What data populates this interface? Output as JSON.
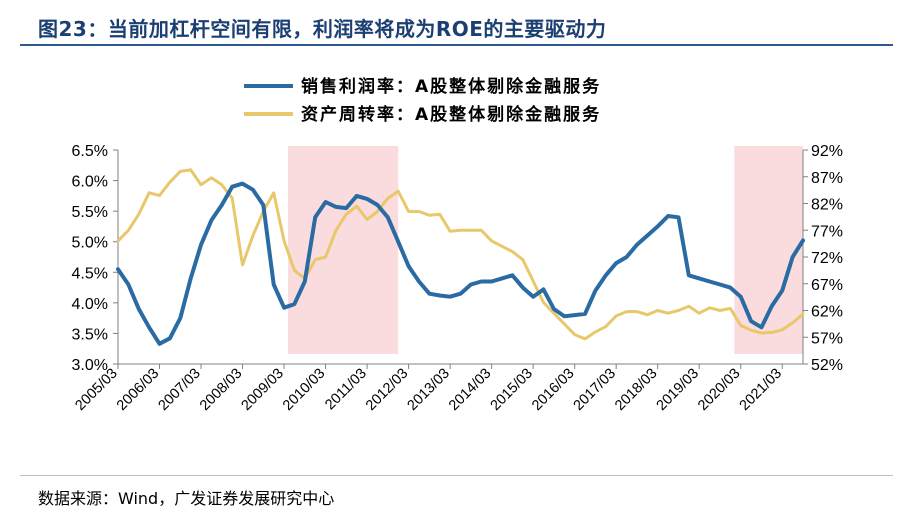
{
  "figure": {
    "title": "图23：当前加杠杆空间有限，利润率将成为ROE的主要驱动力",
    "source": "数据来源：Wind，广发证券发展研究中心"
  },
  "colors": {
    "series1": "#2a6ba3",
    "series2": "#e8c86a",
    "shade": "#fadbde",
    "title": "#1b3f73"
  },
  "chart_data": {
    "type": "line",
    "title": "",
    "x_tick_labels": [
      "2005/03",
      "2006/03",
      "2007/03",
      "2008/03",
      "2009/03",
      "2010/03",
      "2011/03",
      "2012/03",
      "2013/03",
      "2014/03",
      "2015/03",
      "2016/03",
      "2017/03",
      "2018/03",
      "2019/03",
      "2020/03",
      "2021/03"
    ],
    "x_range": [
      2005.0,
      2021.5
    ],
    "left_axis": {
      "min": 3.0,
      "max": 6.5,
      "tick_labels": [
        "3.0%",
        "3.5%",
        "4.0%",
        "4.5%",
        "5.0%",
        "5.5%",
        "6.0%",
        "6.5%"
      ],
      "tick_values": [
        3.0,
        3.5,
        4.0,
        4.5,
        5.0,
        5.5,
        6.0,
        6.5
      ]
    },
    "right_axis": {
      "min": 52,
      "max": 92,
      "tick_labels": [
        "52%",
        "57%",
        "62%",
        "67%",
        "72%",
        "77%",
        "82%",
        "87%",
        "92%"
      ],
      "tick_values": [
        52,
        57,
        62,
        67,
        72,
        77,
        82,
        87,
        92
      ]
    },
    "shaded_periods": [
      [
        2009.0,
        2011.75
      ],
      [
        2019.75,
        2021.5
      ]
    ],
    "series": [
      {
        "name": "销售利润率：A股整体剔除金融服务",
        "axis": "left",
        "x": [
          2005.0,
          2005.25,
          2005.5,
          2005.75,
          2006.0,
          2006.25,
          2006.5,
          2006.75,
          2007.0,
          2007.25,
          2007.5,
          2007.75,
          2008.0,
          2008.25,
          2008.5,
          2008.75,
          2009.0,
          2009.25,
          2009.5,
          2009.75,
          2010.0,
          2010.25,
          2010.5,
          2010.75,
          2011.0,
          2011.25,
          2011.5,
          2011.75,
          2012.0,
          2012.25,
          2012.5,
          2012.75,
          2013.0,
          2013.25,
          2013.5,
          2013.75,
          2014.0,
          2014.25,
          2014.5,
          2014.75,
          2015.0,
          2015.25,
          2015.5,
          2015.75,
          2016.0,
          2016.25,
          2016.5,
          2016.75,
          2017.0,
          2017.25,
          2017.5,
          2017.75,
          2018.0,
          2018.25,
          2018.5,
          2018.75,
          2019.0,
          2019.25,
          2019.5,
          2019.75,
          2020.0,
          2020.25,
          2020.5,
          2020.75,
          2021.0,
          2021.25,
          2021.5
        ],
        "values": [
          4.55,
          4.3,
          3.9,
          3.6,
          3.33,
          3.42,
          3.75,
          4.4,
          4.95,
          5.35,
          5.6,
          5.9,
          5.95,
          5.85,
          5.6,
          4.3,
          3.92,
          3.98,
          4.35,
          5.4,
          5.65,
          5.57,
          5.55,
          5.75,
          5.7,
          5.6,
          5.4,
          5.0,
          4.6,
          4.35,
          4.15,
          4.12,
          4.1,
          4.15,
          4.3,
          4.35,
          4.35,
          4.4,
          4.45,
          4.25,
          4.1,
          4.22,
          3.9,
          3.78,
          3.8,
          3.82,
          4.2,
          4.45,
          4.65,
          4.75,
          4.95,
          5.1,
          5.25,
          5.42,
          5.4,
          4.45,
          4.4,
          4.35,
          4.3,
          4.25,
          4.1,
          3.7,
          3.6,
          3.95,
          4.2,
          4.75,
          5.02
        ]
      },
      {
        "name": "资产周转率：A股整体剔除金融服务",
        "axis": "right",
        "x": [
          2005.0,
          2005.25,
          2005.5,
          2005.75,
          2006.0,
          2006.25,
          2006.5,
          2006.75,
          2007.0,
          2007.25,
          2007.5,
          2007.75,
          2008.0,
          2008.25,
          2008.5,
          2008.75,
          2009.0,
          2009.25,
          2009.5,
          2009.75,
          2010.0,
          2010.25,
          2010.5,
          2010.75,
          2011.0,
          2011.25,
          2011.5,
          2011.75,
          2012.0,
          2012.25,
          2012.5,
          2012.75,
          2013.0,
          2013.25,
          2013.5,
          2013.75,
          2014.0,
          2014.25,
          2014.5,
          2014.75,
          2015.0,
          2015.25,
          2015.5,
          2015.75,
          2016.0,
          2016.25,
          2016.5,
          2016.75,
          2017.0,
          2017.25,
          2017.5,
          2017.75,
          2018.0,
          2018.25,
          2018.5,
          2018.75,
          2019.0,
          2019.25,
          2019.5,
          2019.75,
          2020.0,
          2020.25,
          2020.5,
          2020.75,
          2021.0,
          2021.25,
          2021.5
        ],
        "values": [
          75,
          77,
          80,
          84,
          83.5,
          86,
          88,
          88.3,
          85.5,
          86.8,
          85.5,
          83,
          70.5,
          76,
          80.5,
          84,
          75,
          69.5,
          68,
          71.5,
          72,
          77,
          80,
          81.5,
          79,
          80.5,
          83,
          84.3,
          80.5,
          80.5,
          79.8,
          80,
          76.8,
          77,
          77,
          77,
          75,
          74,
          73,
          71.5,
          67.5,
          63.5,
          61.5,
          59.5,
          57.5,
          56.7,
          58,
          59,
          61,
          61.8,
          61.8,
          61.2,
          62,
          61.5,
          62,
          62.8,
          61.5,
          62.5,
          62,
          62.4,
          59.2,
          58.3,
          57.8,
          57.9,
          58.4,
          59.7,
          61.3
        ]
      }
    ]
  }
}
